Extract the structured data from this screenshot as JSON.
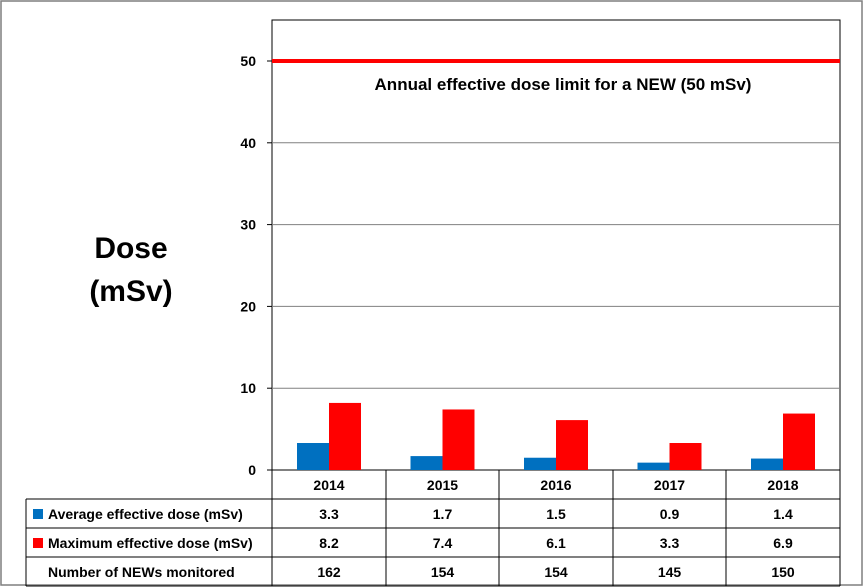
{
  "chart_data": {
    "type": "bar",
    "title": "",
    "ylabel_line1": "Dose",
    "ylabel_line2": "(mSv)",
    "ylim": [
      0,
      55
    ],
    "yticks": [
      "0",
      "10",
      "20",
      "30",
      "40",
      "50"
    ],
    "ytick_values": [
      0,
      10,
      20,
      30,
      40,
      50
    ],
    "categories": [
      "2014",
      "2015",
      "2016",
      "2017",
      "2018"
    ],
    "series": [
      {
        "name": "Average effective dose (mSv)",
        "color": "#0070C0",
        "values": [
          3.3,
          1.7,
          1.5,
          0.9,
          1.4
        ],
        "labels": [
          "3.3",
          "1.7",
          "1.5",
          "0.9",
          "1.4"
        ]
      },
      {
        "name": "Maximum effective dose (mSv)",
        "color": "#FF0000",
        "values": [
          8.2,
          7.4,
          6.1,
          3.3,
          6.9
        ],
        "labels": [
          "8.2",
          "7.4",
          "6.1",
          "3.3",
          "6.9"
        ]
      }
    ],
    "reference_line": {
      "value": 50,
      "color": "#FF0000",
      "label": "Annual effective dose limit for a NEW (50 mSv)"
    },
    "table_extra_row": {
      "name": "Number of NEWs monitored",
      "values": [
        "162",
        "154",
        "154",
        "145",
        "150"
      ]
    },
    "grid": true,
    "legend": "data-table"
  }
}
